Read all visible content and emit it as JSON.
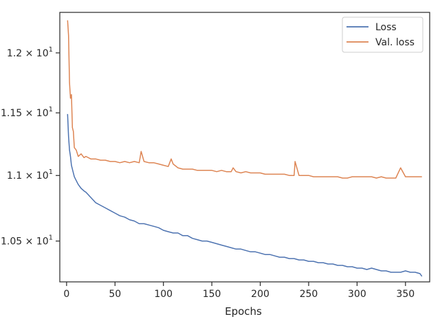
{
  "chart_data": {
    "type": "line",
    "title": "",
    "xlabel": "Epochs",
    "ylabel": "",
    "yscale": "log",
    "xlim": [
      -7,
      375
    ],
    "ylim": [
      10.2,
      12.35
    ],
    "x_ticks": [
      {
        "value": 0,
        "label": "0"
      },
      {
        "value": 50,
        "label": "50"
      },
      {
        "value": 100,
        "label": "100"
      },
      {
        "value": 150,
        "label": "150"
      },
      {
        "value": 200,
        "label": "200"
      },
      {
        "value": 250,
        "label": "250"
      },
      {
        "value": 300,
        "label": "300"
      },
      {
        "value": 350,
        "label": "350"
      }
    ],
    "y_ticks": [
      {
        "value": 10.5,
        "mantissa": "1.05",
        "base": "10",
        "exp": "1"
      },
      {
        "value": 11.0,
        "mantissa": "1.1",
        "base": "10",
        "exp": "1"
      },
      {
        "value": 11.5,
        "mantissa": "1.15",
        "base": "10",
        "exp": "1"
      },
      {
        "value": 12.0,
        "mantissa": "1.2",
        "base": "10",
        "exp": "1"
      }
    ],
    "grid": false,
    "legend_position": "top-right",
    "series": [
      {
        "name": "Loss",
        "color": "#4c72b0",
        "x": [
          1,
          2,
          3,
          4,
          5,
          6,
          8,
          10,
          12,
          15,
          18,
          20,
          25,
          30,
          35,
          40,
          45,
          50,
          55,
          60,
          65,
          70,
          75,
          80,
          85,
          90,
          95,
          100,
          105,
          110,
          115,
          120,
          125,
          130,
          135,
          140,
          145,
          150,
          155,
          160,
          165,
          170,
          175,
          180,
          185,
          190,
          195,
          200,
          205,
          210,
          215,
          220,
          225,
          230,
          235,
          240,
          245,
          250,
          255,
          260,
          265,
          270,
          275,
          280,
          285,
          290,
          295,
          300,
          305,
          310,
          315,
          320,
          325,
          330,
          335,
          340,
          345,
          350,
          355,
          360,
          365,
          367
        ],
        "y": [
          11.49,
          11.31,
          11.2,
          11.15,
          11.08,
          11.05,
          10.99,
          10.96,
          10.93,
          10.9,
          10.88,
          10.87,
          10.83,
          10.79,
          10.77,
          10.75,
          10.73,
          10.71,
          10.69,
          10.68,
          10.66,
          10.65,
          10.63,
          10.63,
          10.62,
          10.61,
          10.6,
          10.58,
          10.57,
          10.56,
          10.56,
          10.54,
          10.54,
          10.52,
          10.51,
          10.5,
          10.5,
          10.49,
          10.48,
          10.47,
          10.46,
          10.45,
          10.44,
          10.44,
          10.43,
          10.42,
          10.42,
          10.41,
          10.4,
          10.4,
          10.39,
          10.38,
          10.38,
          10.37,
          10.37,
          10.36,
          10.36,
          10.35,
          10.35,
          10.34,
          10.34,
          10.33,
          10.33,
          10.32,
          10.32,
          10.31,
          10.31,
          10.3,
          10.3,
          10.29,
          10.3,
          10.29,
          10.28,
          10.28,
          10.27,
          10.27,
          10.27,
          10.28,
          10.27,
          10.27,
          10.26,
          10.24
        ]
      },
      {
        "name": "Val. loss",
        "color": "#dd8452",
        "x": [
          1,
          2,
          3,
          4,
          5,
          6,
          7,
          8,
          10,
          12,
          15,
          18,
          20,
          25,
          30,
          35,
          40,
          45,
          50,
          55,
          60,
          65,
          70,
          75,
          77,
          80,
          85,
          90,
          95,
          100,
          105,
          108,
          110,
          115,
          120,
          125,
          130,
          135,
          140,
          145,
          150,
          155,
          160,
          165,
          170,
          172,
          175,
          180,
          185,
          190,
          195,
          200,
          205,
          210,
          215,
          220,
          225,
          230,
          235,
          236,
          240,
          245,
          250,
          255,
          260,
          265,
          270,
          275,
          280,
          285,
          290,
          295,
          300,
          305,
          310,
          315,
          320,
          325,
          330,
          335,
          340,
          345,
          350,
          355,
          360,
          365,
          367
        ],
        "y": [
          12.28,
          12.15,
          11.75,
          11.62,
          11.65,
          11.38,
          11.35,
          11.22,
          11.2,
          11.15,
          11.17,
          11.14,
          11.15,
          11.13,
          11.13,
          11.12,
          11.12,
          11.11,
          11.11,
          11.1,
          11.11,
          11.1,
          11.11,
          11.1,
          11.19,
          11.11,
          11.1,
          11.1,
          11.09,
          11.08,
          11.07,
          11.13,
          11.09,
          11.06,
          11.05,
          11.05,
          11.05,
          11.04,
          11.04,
          11.04,
          11.04,
          11.03,
          11.04,
          11.03,
          11.03,
          11.06,
          11.03,
          11.02,
          11.03,
          11.02,
          11.02,
          11.02,
          11.01,
          11.01,
          11.01,
          11.01,
          11.01,
          11.0,
          11.0,
          11.11,
          11.0,
          11.0,
          11.0,
          10.99,
          10.99,
          10.99,
          10.99,
          10.99,
          10.99,
          10.98,
          10.98,
          10.99,
          10.99,
          10.99,
          10.99,
          10.99,
          10.98,
          10.99,
          10.98,
          10.98,
          10.98,
          11.06,
          10.99,
          10.99,
          10.99,
          10.99,
          10.99
        ]
      }
    ]
  }
}
